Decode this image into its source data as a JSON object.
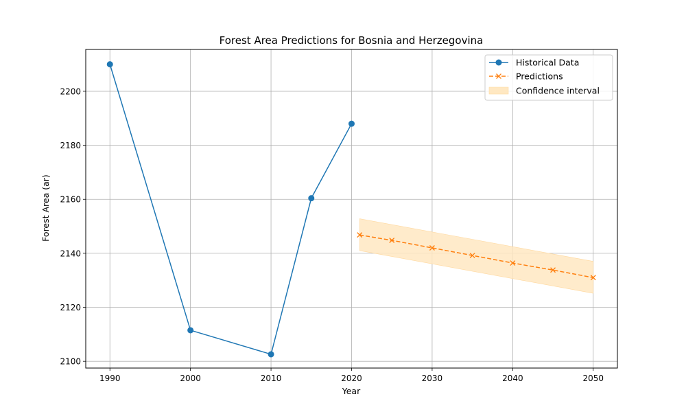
{
  "chart_data": {
    "type": "line",
    "title": "Forest Area Predictions for Bosnia and Herzegovina",
    "xlabel": "Year",
    "ylabel": "Forest Area (ar)",
    "xlim": [
      1987,
      2053
    ],
    "ylim": [
      2097.5,
      2215.5
    ],
    "xticks": [
      1990,
      2000,
      2010,
      2020,
      2030,
      2040,
      2050
    ],
    "yticks": [
      2100,
      2120,
      2140,
      2160,
      2180,
      2200
    ],
    "grid": true,
    "legend_position": "top-right",
    "series": [
      {
        "name": "Historical Data",
        "color": "#1f77b4",
        "marker": "circle",
        "line_style": "solid",
        "x": [
          1990,
          2000,
          2010,
          2015,
          2020
        ],
        "y": [
          2210,
          2111.5,
          2102.6,
          2160.4,
          2188
        ]
      },
      {
        "name": "Predictions",
        "color": "#ff7f0e",
        "marker": "x",
        "line_style": "dashed",
        "x": [
          2021,
          2025,
          2030,
          2035,
          2040,
          2045,
          2050
        ],
        "y": [
          2146.8,
          2144.8,
          2142,
          2139.2,
          2136.4,
          2133.8,
          2131
        ]
      },
      {
        "name": "Confidence interval",
        "color": "#ffe8c2",
        "type": "band",
        "x": [
          2021,
          2050
        ],
        "lower": [
          2141,
          2125.2
        ],
        "upper": [
          2152.8,
          2137
        ]
      }
    ]
  }
}
